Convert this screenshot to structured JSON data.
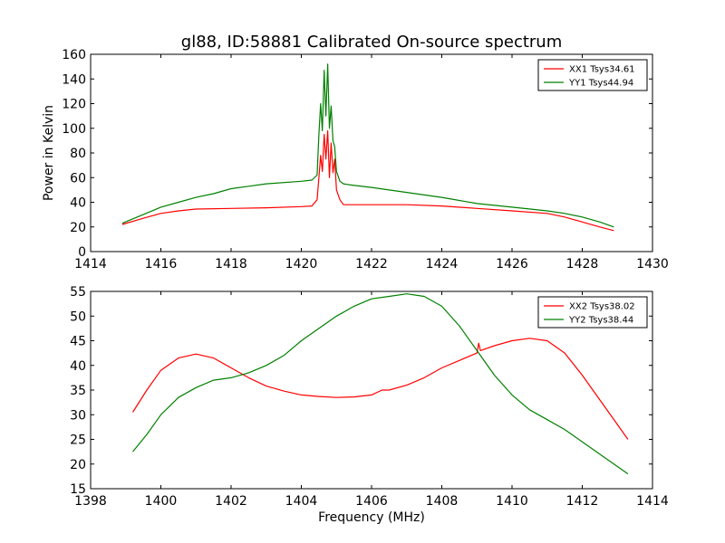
{
  "figure": {
    "title": "gl88, ID:58881 Calibrated On-source spectrum"
  },
  "chart_data": [
    {
      "type": "line",
      "title": "gl88, ID:58881 Calibrated On-source spectrum",
      "xlabel": "",
      "ylabel": "Power in Kelvin",
      "xlim": [
        1414,
        1430
      ],
      "ylim": [
        0,
        160
      ],
      "xticks": [
        1414,
        1416,
        1418,
        1420,
        1422,
        1424,
        1426,
        1428,
        1430
      ],
      "yticks": [
        0,
        20,
        40,
        60,
        80,
        100,
        120,
        140,
        160
      ],
      "legend": "top-right",
      "grid": false,
      "series": [
        {
          "name": "XX1 Tsys34.61",
          "color": "#ff0000",
          "x": [
            1414.9,
            1415.5,
            1416,
            1416.5,
            1417,
            1418,
            1419,
            1420,
            1420.3,
            1420.45,
            1420.5,
            1420.55,
            1420.6,
            1420.65,
            1420.7,
            1420.75,
            1420.8,
            1420.85,
            1420.9,
            1420.95,
            1421,
            1421.1,
            1421.2,
            1421.4,
            1422,
            1423,
            1424,
            1425,
            1426,
            1427,
            1427.5,
            1428,
            1428.5,
            1428.9
          ],
          "y": [
            22,
            27,
            31,
            33,
            34.5,
            35,
            35.5,
            36.5,
            37,
            42,
            60,
            78,
            65,
            95,
            75,
            98,
            60,
            88,
            64,
            75,
            50,
            42,
            38,
            38,
            38,
            38,
            37,
            35,
            33,
            31,
            28,
            24,
            20,
            17
          ]
        },
        {
          "name": "YY1 Tsys44.94",
          "color": "#008000",
          "x": [
            1414.9,
            1415.5,
            1416,
            1416.5,
            1417,
            1417.5,
            1418,
            1418.5,
            1419,
            1420,
            1420.3,
            1420.45,
            1420.5,
            1420.55,
            1420.6,
            1420.65,
            1420.7,
            1420.75,
            1420.8,
            1420.85,
            1420.9,
            1420.95,
            1421,
            1421.1,
            1421.2,
            1421.4,
            1422,
            1423,
            1424,
            1425,
            1426,
            1427,
            1427.5,
            1428,
            1428.5,
            1428.9
          ],
          "y": [
            23,
            30,
            36,
            40,
            44,
            47,
            51,
            53,
            55,
            57,
            58,
            62,
            95,
            120,
            98,
            147,
            110,
            152,
            100,
            118,
            90,
            85,
            65,
            57,
            55,
            54,
            52,
            48,
            44,
            39,
            36,
            33,
            31,
            28,
            24,
            20
          ]
        }
      ]
    },
    {
      "type": "line",
      "title": "",
      "xlabel": "Frequency (MHz)",
      "ylabel": "",
      "xlim": [
        1398,
        1414
      ],
      "ylim": [
        15,
        55
      ],
      "xticks": [
        1398,
        1400,
        1402,
        1404,
        1406,
        1408,
        1410,
        1412,
        1414
      ],
      "yticks": [
        15,
        20,
        25,
        30,
        35,
        40,
        45,
        50,
        55
      ],
      "legend": "top-right",
      "grid": false,
      "series": [
        {
          "name": "XX2 Tsys38.02",
          "color": "#ff0000",
          "x": [
            1399.2,
            1399.6,
            1400,
            1400.5,
            1401,
            1401.5,
            1402,
            1402.5,
            1403,
            1403.5,
            1404,
            1404.5,
            1405,
            1405.5,
            1406,
            1406.3,
            1406.5,
            1407,
            1407.5,
            1408,
            1408.5,
            1409,
            1409.05,
            1409.1,
            1409.5,
            1410,
            1410.5,
            1411,
            1411.5,
            1412,
            1412.5,
            1413,
            1413.3
          ],
          "y": [
            30.5,
            35,
            39,
            41.5,
            42.3,
            41.5,
            39.5,
            37.5,
            35.8,
            34.8,
            34,
            33.7,
            33.5,
            33.6,
            34,
            35,
            35,
            36,
            37.5,
            39.5,
            41,
            42.5,
            44.5,
            43,
            44,
            45,
            45.5,
            45,
            42.5,
            38,
            33,
            28,
            25
          ]
        },
        {
          "name": "YY2 Tsys38.44",
          "color": "#008000",
          "x": [
            1399.2,
            1399.6,
            1400,
            1400.5,
            1401,
            1401.5,
            1402,
            1402.5,
            1403,
            1403.5,
            1404,
            1404.5,
            1405,
            1405.5,
            1406,
            1406.5,
            1407,
            1407.5,
            1408,
            1408.5,
            1409,
            1409.5,
            1410,
            1410.5,
            1411,
            1411.5,
            1412,
            1412.5,
            1413,
            1413.3
          ],
          "y": [
            22.5,
            26,
            30,
            33.5,
            35.5,
            37,
            37.5,
            38.5,
            40,
            42,
            45,
            47.5,
            50,
            52,
            53.5,
            54,
            54.5,
            54,
            52,
            48,
            43,
            38,
            34,
            31,
            29,
            27,
            24.5,
            22,
            19.5,
            18
          ]
        }
      ]
    }
  ]
}
